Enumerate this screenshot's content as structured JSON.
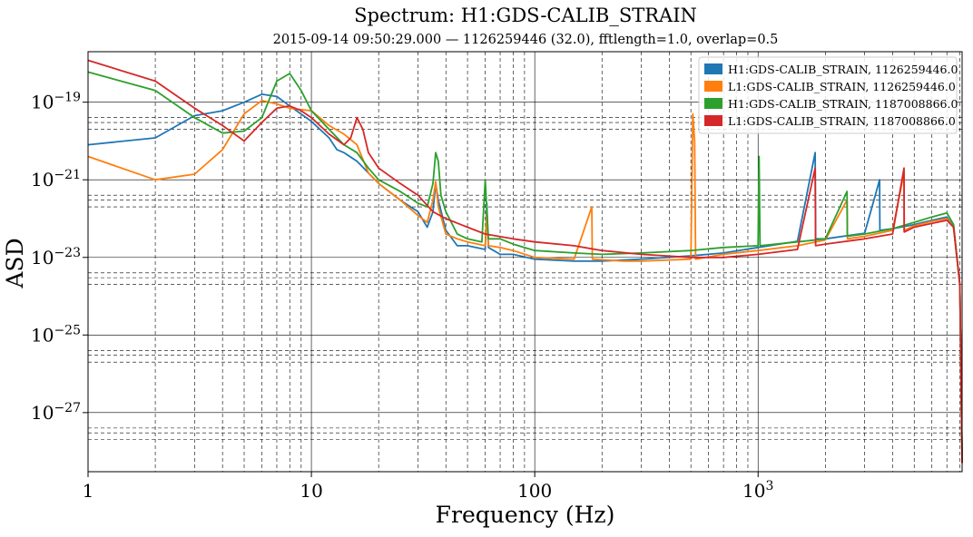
{
  "colors": {
    "blue": "#1f77b4",
    "orange": "#ff7f0e",
    "green": "#2ca02c",
    "red": "#d62728"
  },
  "chart_data": {
    "type": "line",
    "title": "Spectrum: H1:GDS-CALIB_STRAIN",
    "subtitle": "2015-09-14 09:50:29.000 — 1126259446 (32.0), fftlength=1.0, overlap=0.5",
    "xlabel": "Frequency (Hz)",
    "ylabel": "ASD",
    "xscale": "log",
    "yscale": "log",
    "xlim": [
      1,
      8192
    ],
    "ylim": [
      3e-29,
      2e-18
    ],
    "grid": true,
    "legend_position": "top-right",
    "x_ticks": [
      {
        "value": 1,
        "label": "1"
      },
      {
        "value": 10,
        "label": "10"
      },
      {
        "value": 100,
        "label": "100"
      },
      {
        "value": 1000,
        "label": "10^3"
      }
    ],
    "y_ticks": [
      {
        "value": 1e-27,
        "label": "10^-27"
      },
      {
        "value": 1e-25,
        "label": "10^-25"
      },
      {
        "value": 1e-23,
        "label": "10^-23"
      },
      {
        "value": 1e-21,
        "label": "10^-21"
      },
      {
        "value": 1e-19,
        "label": "10^-19"
      }
    ],
    "series": [
      {
        "name": "H1:GDS-CALIB_STRAIN, 1126259446.0",
        "color": "#1f77b4",
        "points": [
          [
            1,
            8e-21
          ],
          [
            2,
            1.2e-20
          ],
          [
            3,
            4.5e-20
          ],
          [
            4,
            6e-20
          ],
          [
            5,
            1e-19
          ],
          [
            6,
            1.6e-19
          ],
          [
            7,
            1.4e-19
          ],
          [
            8,
            8e-20
          ],
          [
            10,
            3.2e-20
          ],
          [
            12,
            1.2e-20
          ],
          [
            13,
            6e-21
          ],
          [
            14,
            5e-21
          ],
          [
            16,
            3e-21
          ],
          [
            20,
            8e-22
          ],
          [
            25,
            3e-22
          ],
          [
            30,
            1.5e-22
          ],
          [
            33,
            6e-23
          ],
          [
            35,
            1.5e-22
          ],
          [
            36,
            8e-22
          ],
          [
            37,
            3e-22
          ],
          [
            40,
            5e-23
          ],
          [
            45,
            2e-23
          ],
          [
            50,
            2e-23
          ],
          [
            60,
            1.6e-23
          ],
          [
            61,
            2.5e-22
          ],
          [
            62,
            1.8e-23
          ],
          [
            70,
            1.2e-23
          ],
          [
            80,
            1.2e-23
          ],
          [
            100,
            9e-24
          ],
          [
            150,
            8e-24
          ],
          [
            200,
            8e-24
          ],
          [
            300,
            9e-24
          ],
          [
            500,
            1.1e-23
          ],
          [
            700,
            1.3e-23
          ],
          [
            1000,
            1.8e-23
          ],
          [
            1500,
            2.6e-23
          ],
          [
            1800,
            5e-21
          ],
          [
            1810,
            3e-23
          ],
          [
            2000,
            3e-23
          ],
          [
            3000,
            4.2e-23
          ],
          [
            3500,
            1e-21
          ],
          [
            3510,
            5e-23
          ],
          [
            4000,
            5.5e-23
          ],
          [
            5000,
            7e-23
          ],
          [
            6000,
            9e-23
          ],
          [
            7000,
            1.1e-22
          ],
          [
            7500,
            6e-23
          ],
          [
            8000,
            2e-24
          ],
          [
            8192,
            6e-29
          ]
        ]
      },
      {
        "name": "L1:GDS-CALIB_STRAIN, 1126259446.0",
        "color": "#ff7f0e",
        "points": [
          [
            1,
            4e-21
          ],
          [
            2,
            1e-21
          ],
          [
            3,
            1.4e-21
          ],
          [
            4,
            6e-21
          ],
          [
            5,
            5e-20
          ],
          [
            6,
            1.1e-19
          ],
          [
            7,
            9e-20
          ],
          [
            8,
            7e-20
          ],
          [
            10,
            6e-20
          ],
          [
            12,
            2.5e-20
          ],
          [
            14,
            1.5e-20
          ],
          [
            16,
            8e-21
          ],
          [
            18,
            1.5e-21
          ],
          [
            20,
            8e-22
          ],
          [
            25,
            3e-22
          ],
          [
            30,
            1.2e-22
          ],
          [
            33,
            8e-23
          ],
          [
            35,
            3e-22
          ],
          [
            36,
            9e-22
          ],
          [
            37,
            2e-22
          ],
          [
            40,
            4e-23
          ],
          [
            45,
            3e-23
          ],
          [
            50,
            2.5e-23
          ],
          [
            60,
            2e-23
          ],
          [
            61,
            1.5e-22
          ],
          [
            62,
            2e-23
          ],
          [
            70,
            1.8e-23
          ],
          [
            80,
            1.5e-23
          ],
          [
            100,
            1e-23
          ],
          [
            150,
            9e-24
          ],
          [
            180,
            2e-22
          ],
          [
            181,
            9e-24
          ],
          [
            250,
            8e-24
          ],
          [
            300,
            8e-24
          ],
          [
            500,
            9e-24
          ],
          [
            510,
            5e-20
          ],
          [
            520,
            1e-20
          ],
          [
            525,
            9e-24
          ],
          [
            700,
            1.2e-23
          ],
          [
            1000,
            1.5e-23
          ],
          [
            1500,
            2e-23
          ],
          [
            2000,
            2.8e-23
          ],
          [
            2500,
            3e-22
          ],
          [
            2510,
            3e-23
          ],
          [
            3000,
            3.5e-23
          ],
          [
            4000,
            5e-23
          ],
          [
            4500,
            1.5e-21
          ],
          [
            4510,
            5e-23
          ],
          [
            5000,
            6.5e-23
          ],
          [
            6000,
            8.5e-23
          ],
          [
            7000,
            1e-22
          ],
          [
            7500,
            6e-23
          ],
          [
            8000,
            2e-24
          ],
          [
            8192,
            5e-29
          ]
        ]
      },
      {
        "name": "H1:GDS-CALIB_STRAIN, 1187008866.0",
        "color": "#2ca02c",
        "points": [
          [
            1,
            6e-19
          ],
          [
            2,
            2e-19
          ],
          [
            3,
            4e-20
          ],
          [
            4,
            1.6e-20
          ],
          [
            5,
            1.8e-20
          ],
          [
            6,
            4e-20
          ],
          [
            7,
            3.5e-19
          ],
          [
            8,
            5.5e-19
          ],
          [
            9,
            2e-19
          ],
          [
            10,
            6e-20
          ],
          [
            12,
            2e-20
          ],
          [
            14,
            8e-21
          ],
          [
            16,
            5e-21
          ],
          [
            18,
            2e-21
          ],
          [
            20,
            1e-21
          ],
          [
            25,
            5e-22
          ],
          [
            30,
            2.5e-22
          ],
          [
            33,
            2e-22
          ],
          [
            35,
            8e-22
          ],
          [
            36,
            5e-21
          ],
          [
            37,
            3e-21
          ],
          [
            38,
            4e-22
          ],
          [
            40,
            1.5e-22
          ],
          [
            45,
            4e-23
          ],
          [
            50,
            3e-23
          ],
          [
            58,
            2.5e-23
          ],
          [
            60,
            1e-21
          ],
          [
            62,
            3e-23
          ],
          [
            70,
            3e-23
          ],
          [
            80,
            2.2e-23
          ],
          [
            100,
            1.5e-23
          ],
          [
            150,
            1.3e-23
          ],
          [
            200,
            1.2e-23
          ],
          [
            300,
            1.3e-23
          ],
          [
            500,
            1.5e-23
          ],
          [
            700,
            1.8e-23
          ],
          [
            1000,
            2e-23
          ],
          [
            1010,
            4e-21
          ],
          [
            1020,
            2e-23
          ],
          [
            1500,
            2.5e-23
          ],
          [
            2000,
            3e-23
          ],
          [
            2500,
            5e-22
          ],
          [
            2510,
            3.5e-23
          ],
          [
            3000,
            4e-23
          ],
          [
            4000,
            5.5e-23
          ],
          [
            5000,
            8e-23
          ],
          [
            6000,
            1.1e-22
          ],
          [
            7000,
            1.4e-22
          ],
          [
            7500,
            7e-23
          ],
          [
            8000,
            2e-24
          ],
          [
            8192,
            8e-29
          ]
        ]
      },
      {
        "name": "L1:GDS-CALIB_STRAIN, 1187008866.0",
        "color": "#d62728",
        "points": [
          [
            1,
            1.2e-18
          ],
          [
            2,
            3.5e-19
          ],
          [
            3,
            7e-20
          ],
          [
            4,
            2.5e-20
          ],
          [
            5,
            1e-20
          ],
          [
            6,
            3e-20
          ],
          [
            7,
            7e-20
          ],
          [
            8,
            8e-20
          ],
          [
            9,
            6e-20
          ],
          [
            10,
            4e-20
          ],
          [
            12,
            1.5e-20
          ],
          [
            14,
            8e-21
          ],
          [
            15,
            1.2e-20
          ],
          [
            16,
            4e-20
          ],
          [
            17,
            2e-20
          ],
          [
            18,
            5e-21
          ],
          [
            20,
            2e-21
          ],
          [
            25,
            8e-22
          ],
          [
            30,
            4e-22
          ],
          [
            35,
            1.5e-22
          ],
          [
            40,
            1e-22
          ],
          [
            50,
            6e-23
          ],
          [
            60,
            4e-23
          ],
          [
            80,
            3e-23
          ],
          [
            100,
            2.5e-23
          ],
          [
            150,
            2e-23
          ],
          [
            200,
            1.5e-23
          ],
          [
            300,
            1.2e-23
          ],
          [
            500,
            1e-23
          ],
          [
            700,
            1e-23
          ],
          [
            1000,
            1.2e-23
          ],
          [
            1500,
            1.6e-23
          ],
          [
            1800,
            2e-21
          ],
          [
            1810,
            2e-23
          ],
          [
            2000,
            2.2e-23
          ],
          [
            3000,
            3e-23
          ],
          [
            4000,
            4e-23
          ],
          [
            4500,
            2e-21
          ],
          [
            4510,
            4.5e-23
          ],
          [
            5000,
            6e-23
          ],
          [
            6000,
            7.5e-23
          ],
          [
            7000,
            9e-23
          ],
          [
            7500,
            6e-23
          ],
          [
            8000,
            2e-24
          ],
          [
            8192,
            5e-29
          ]
        ]
      }
    ]
  }
}
